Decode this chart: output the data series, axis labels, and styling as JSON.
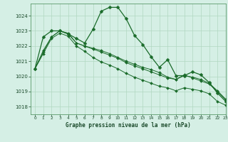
{
  "background_color": "#d5efe5",
  "grid_color": "#b0d8c0",
  "line_color": "#1a6b2a",
  "title": "Graphe pression niveau de la mer (hPa)",
  "xlim": [
    -0.5,
    23
  ],
  "ylim": [
    1017.5,
    1024.8
  ],
  "yticks": [
    1018,
    1019,
    1020,
    1021,
    1022,
    1023,
    1024
  ],
  "xticks": [
    0,
    1,
    2,
    3,
    4,
    5,
    6,
    7,
    8,
    9,
    10,
    11,
    12,
    13,
    14,
    15,
    16,
    17,
    18,
    19,
    20,
    21,
    22,
    23
  ],
  "series": [
    [
      1020.5,
      1021.6,
      1022.6,
      1023.0,
      1022.8,
      1022.2,
      1022.0,
      1021.8,
      1021.6,
      1021.4,
      1021.2,
      1020.9,
      1020.7,
      1020.5,
      1020.3,
      1020.1,
      1019.9,
      1019.8,
      1020.1,
      1019.9,
      1019.7,
      1019.5,
      1019.0,
      1018.45
    ],
    [
      1020.5,
      1022.6,
      1023.0,
      1023.0,
      1022.8,
      1022.5,
      1022.2,
      1023.1,
      1024.3,
      1024.55,
      1024.55,
      1023.8,
      1022.7,
      1022.1,
      1021.3,
      1020.6,
      1021.1,
      1020.05,
      1020.05,
      1020.3,
      1020.1,
      1019.6,
      1018.9,
      1018.35
    ],
    [
      1020.5,
      1021.7,
      1022.6,
      1023.0,
      1022.85,
      1022.2,
      1022.0,
      1021.85,
      1021.7,
      1021.5,
      1021.25,
      1021.0,
      1020.8,
      1020.6,
      1020.45,
      1020.25,
      1019.95,
      1019.8,
      1020.05,
      1019.95,
      1019.8,
      1019.55,
      1019.05,
      1018.5
    ],
    [
      1020.5,
      1021.5,
      1022.5,
      1022.85,
      1022.65,
      1022.0,
      1021.65,
      1021.25,
      1020.95,
      1020.75,
      1020.5,
      1020.2,
      1019.95,
      1019.75,
      1019.55,
      1019.35,
      1019.25,
      1019.05,
      1019.25,
      1019.15,
      1019.05,
      1018.85,
      1018.35,
      1018.1
    ]
  ]
}
